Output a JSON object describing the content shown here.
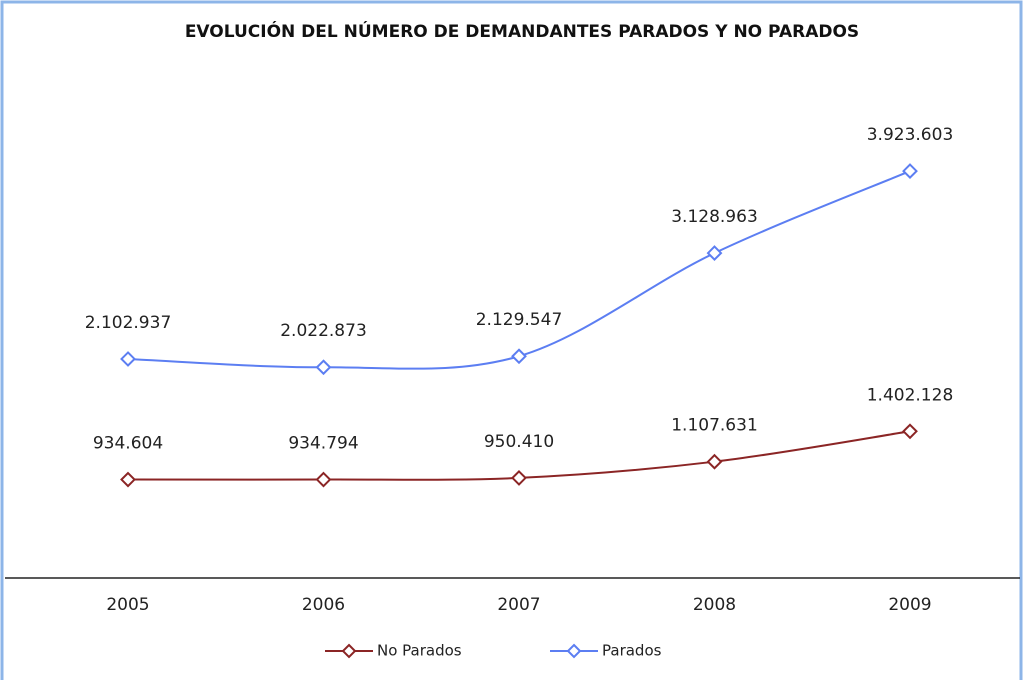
{
  "chart_data": {
    "type": "line",
    "title": "EVOLUCIÓN DEL NÚMERO DE DEMANDANTES PARADOS Y NO PARADOS",
    "categories": [
      "2005",
      "2006",
      "2007",
      "2008",
      "2009"
    ],
    "series": [
      {
        "name": "No Parados",
        "color": "#8b2525",
        "values": [
          934604,
          934794,
          950410,
          1107631,
          1402128
        ],
        "value_labels": [
          "934.604",
          "934.794",
          "950.410",
          "1.107.631",
          "1.402.128"
        ]
      },
      {
        "name": "Parados",
        "color": "#5c7ef2",
        "values": [
          2102937,
          2022873,
          2129547,
          3128963,
          3923603
        ],
        "value_labels": [
          "2.102.937",
          "2.022.873",
          "2.129.547",
          "3.128.963",
          "3.923.603"
        ]
      }
    ],
    "ylim": [
      0,
      5000000
    ],
    "legend": "bottom"
  }
}
